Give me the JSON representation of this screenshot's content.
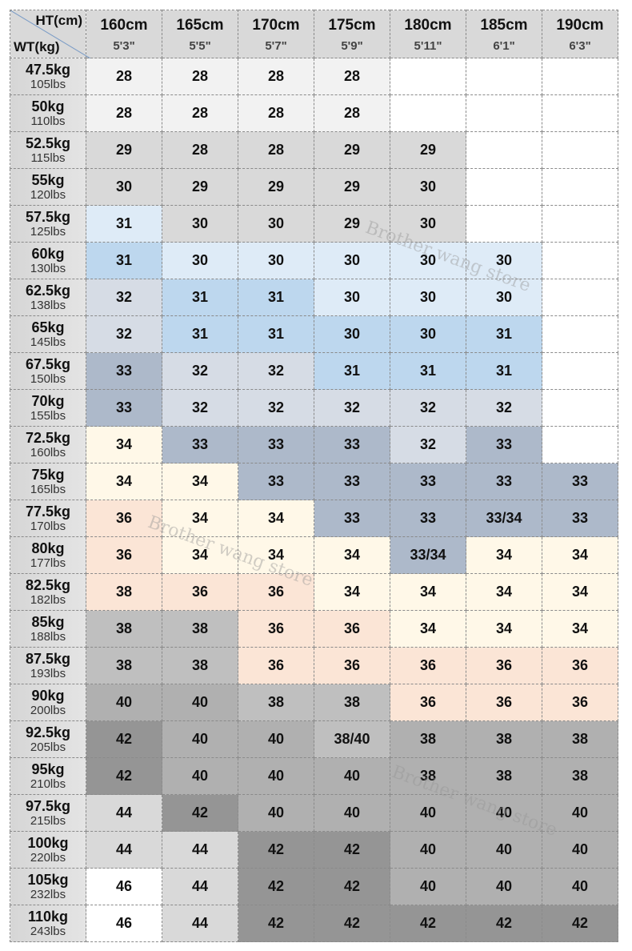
{
  "header": {
    "height_label": "HT(cm)",
    "weight_label": "WT(kg)",
    "columns": [
      {
        "cm": "160cm",
        "ft": "5'3\""
      },
      {
        "cm": "165cm",
        "ft": "5'5\""
      },
      {
        "cm": "170cm",
        "ft": "5'7\""
      },
      {
        "cm": "175cm",
        "ft": "5'9\""
      },
      {
        "cm": "180cm",
        "ft": "5'11\""
      },
      {
        "cm": "185cm",
        "ft": "6'1\""
      },
      {
        "cm": "190cm",
        "ft": "6'3\""
      }
    ]
  },
  "rows": [
    {
      "kg": "47.5kg",
      "lbs": "105lbs",
      "cells": [
        [
          "28",
          "a"
        ],
        [
          "28",
          "a"
        ],
        [
          "28",
          "a"
        ],
        [
          "28",
          "a"
        ],
        [
          "",
          "w"
        ],
        [
          "",
          "w"
        ],
        [
          "",
          "w"
        ]
      ]
    },
    {
      "kg": "50kg",
      "lbs": "110lbs",
      "cells": [
        [
          "28",
          "a"
        ],
        [
          "28",
          "a"
        ],
        [
          "28",
          "a"
        ],
        [
          "28",
          "a"
        ],
        [
          "",
          "w"
        ],
        [
          "",
          "w"
        ],
        [
          "",
          "w"
        ]
      ]
    },
    {
      "kg": "52.5kg",
      "lbs": "115lbs",
      "cells": [
        [
          "29",
          "g"
        ],
        [
          "28",
          "g"
        ],
        [
          "28",
          "g"
        ],
        [
          "29",
          "g"
        ],
        [
          "29",
          "g"
        ],
        [
          "",
          "w"
        ],
        [
          "",
          "w"
        ]
      ]
    },
    {
      "kg": "55kg",
      "lbs": "120lbs",
      "cells": [
        [
          "30",
          "g"
        ],
        [
          "29",
          "g"
        ],
        [
          "29",
          "g"
        ],
        [
          "29",
          "g"
        ],
        [
          "30",
          "g"
        ],
        [
          "",
          "w"
        ],
        [
          "",
          "w"
        ]
      ]
    },
    {
      "kg": "57.5kg",
      "lbs": "125lbs",
      "cells": [
        [
          "31",
          "lb"
        ],
        [
          "30",
          "g"
        ],
        [
          "30",
          "g"
        ],
        [
          "29",
          "g"
        ],
        [
          "30",
          "g"
        ],
        [
          "",
          "w"
        ],
        [
          "",
          "w"
        ]
      ]
    },
    {
      "kg": "60kg",
      "lbs": "130lbs",
      "cells": [
        [
          "31",
          "mb"
        ],
        [
          "30",
          "lb"
        ],
        [
          "30",
          "lb"
        ],
        [
          "30",
          "lb"
        ],
        [
          "30",
          "lb"
        ],
        [
          "30",
          "lb"
        ],
        [
          "",
          "w"
        ]
      ]
    },
    {
      "kg": "62.5kg",
      "lbs": "138lbs",
      "cells": [
        [
          "32",
          "sl"
        ],
        [
          "31",
          "mb"
        ],
        [
          "31",
          "mb"
        ],
        [
          "30",
          "lb"
        ],
        [
          "30",
          "lb"
        ],
        [
          "30",
          "lb"
        ],
        [
          "",
          "w"
        ]
      ]
    },
    {
      "kg": "65kg",
      "lbs": "145lbs",
      "cells": [
        [
          "32",
          "sl"
        ],
        [
          "31",
          "mb"
        ],
        [
          "31",
          "mb"
        ],
        [
          "30",
          "mb"
        ],
        [
          "30",
          "mb"
        ],
        [
          "31",
          "mb"
        ],
        [
          "",
          "w"
        ]
      ]
    },
    {
      "kg": "67.5kg",
      "lbs": "150lbs",
      "cells": [
        [
          "33",
          "sd"
        ],
        [
          "32",
          "sl"
        ],
        [
          "32",
          "sl"
        ],
        [
          "31",
          "mb"
        ],
        [
          "31",
          "mb"
        ],
        [
          "31",
          "mb"
        ],
        [
          "",
          "w"
        ]
      ]
    },
    {
      "kg": "70kg",
      "lbs": "155lbs",
      "cells": [
        [
          "33",
          "sd"
        ],
        [
          "32",
          "sl"
        ],
        [
          "32",
          "sl"
        ],
        [
          "32",
          "sl"
        ],
        [
          "32",
          "sl"
        ],
        [
          "32",
          "sl"
        ],
        [
          "",
          "w"
        ]
      ]
    },
    {
      "kg": "72.5kg",
      "lbs": "160lbs",
      "cells": [
        [
          "34",
          "cr"
        ],
        [
          "33",
          "sd"
        ],
        [
          "33",
          "sd"
        ],
        [
          "33",
          "sd"
        ],
        [
          "32",
          "sl"
        ],
        [
          "33",
          "sd"
        ],
        [
          "",
          "w"
        ]
      ]
    },
    {
      "kg": "75kg",
      "lbs": "165lbs",
      "cells": [
        [
          "34",
          "cr"
        ],
        [
          "34",
          "cr"
        ],
        [
          "33",
          "sd"
        ],
        [
          "33",
          "sd"
        ],
        [
          "33",
          "sd"
        ],
        [
          "33",
          "sd"
        ],
        [
          "33",
          "sd"
        ]
      ]
    },
    {
      "kg": "77.5kg",
      "lbs": "170lbs",
      "cells": [
        [
          "36",
          "pk"
        ],
        [
          "34",
          "cr"
        ],
        [
          "34",
          "cr"
        ],
        [
          "33",
          "sd"
        ],
        [
          "33",
          "sd"
        ],
        [
          "33/34",
          "sd"
        ],
        [
          "33",
          "sd"
        ]
      ]
    },
    {
      "kg": "80kg",
      "lbs": "177lbs",
      "cells": [
        [
          "36",
          "pk"
        ],
        [
          "34",
          "cr"
        ],
        [
          "34",
          "cr"
        ],
        [
          "34",
          "cr"
        ],
        [
          "33/34",
          "sd"
        ],
        [
          "34",
          "cr"
        ],
        [
          "34",
          "cr"
        ]
      ]
    },
    {
      "kg": "82.5kg",
      "lbs": "182lbs",
      "cells": [
        [
          "38",
          "pk"
        ],
        [
          "36",
          "pk"
        ],
        [
          "36",
          "pk"
        ],
        [
          "34",
          "cr"
        ],
        [
          "34",
          "cr"
        ],
        [
          "34",
          "cr"
        ],
        [
          "34",
          "cr"
        ]
      ]
    },
    {
      "kg": "85kg",
      "lbs": "188lbs",
      "cells": [
        [
          "38",
          "g2"
        ],
        [
          "38",
          "g2"
        ],
        [
          "36",
          "pk"
        ],
        [
          "36",
          "pk"
        ],
        [
          "34",
          "cr"
        ],
        [
          "34",
          "cr"
        ],
        [
          "34",
          "cr"
        ]
      ]
    },
    {
      "kg": "87.5kg",
      "lbs": "193lbs",
      "cells": [
        [
          "38",
          "g2"
        ],
        [
          "38",
          "g2"
        ],
        [
          "36",
          "pk"
        ],
        [
          "36",
          "pk"
        ],
        [
          "36",
          "pk"
        ],
        [
          "36",
          "pk"
        ],
        [
          "36",
          "pk"
        ]
      ]
    },
    {
      "kg": "90kg",
      "lbs": "200lbs",
      "cells": [
        [
          "40",
          "g3"
        ],
        [
          "40",
          "g3"
        ],
        [
          "38",
          "g2"
        ],
        [
          "38",
          "g2"
        ],
        [
          "36",
          "pk"
        ],
        [
          "36",
          "pk"
        ],
        [
          "36",
          "pk"
        ]
      ]
    },
    {
      "kg": "92.5kg",
      "lbs": "205lbs",
      "cells": [
        [
          "42",
          "g4"
        ],
        [
          "40",
          "g3"
        ],
        [
          "40",
          "g3"
        ],
        [
          "38/40",
          "g2"
        ],
        [
          "38",
          "g3"
        ],
        [
          "38",
          "g3"
        ],
        [
          "38",
          "g3"
        ]
      ]
    },
    {
      "kg": "95kg",
      "lbs": "210lbs",
      "cells": [
        [
          "42",
          "g4"
        ],
        [
          "40",
          "g3"
        ],
        [
          "40",
          "g3"
        ],
        [
          "40",
          "g3"
        ],
        [
          "38",
          "g3"
        ],
        [
          "38",
          "g3"
        ],
        [
          "38",
          "g3"
        ]
      ]
    },
    {
      "kg": "97.5kg",
      "lbs": "215lbs",
      "cells": [
        [
          "44",
          "g"
        ],
        [
          "42",
          "g4"
        ],
        [
          "40",
          "g3"
        ],
        [
          "40",
          "g3"
        ],
        [
          "40",
          "g3"
        ],
        [
          "40",
          "g3"
        ],
        [
          "40",
          "g3"
        ]
      ]
    },
    {
      "kg": "100kg",
      "lbs": "220lbs",
      "cells": [
        [
          "44",
          "g"
        ],
        [
          "44",
          "g"
        ],
        [
          "42",
          "g4"
        ],
        [
          "42",
          "g4"
        ],
        [
          "40",
          "g3"
        ],
        [
          "40",
          "g3"
        ],
        [
          "40",
          "g3"
        ]
      ]
    },
    {
      "kg": "105kg",
      "lbs": "232lbs",
      "cells": [
        [
          "46",
          "w"
        ],
        [
          "44",
          "g"
        ],
        [
          "42",
          "g4"
        ],
        [
          "42",
          "g4"
        ],
        [
          "40",
          "g3"
        ],
        [
          "40",
          "g3"
        ],
        [
          "40",
          "g3"
        ]
      ]
    },
    {
      "kg": "110kg",
      "lbs": "243lbs",
      "cells": [
        [
          "46",
          "w"
        ],
        [
          "44",
          "g"
        ],
        [
          "42",
          "g4"
        ],
        [
          "42",
          "g4"
        ],
        [
          "42",
          "g4"
        ],
        [
          "42",
          "g4"
        ],
        [
          "42",
          "g4"
        ]
      ]
    }
  ],
  "watermark": "Brother wang store"
}
